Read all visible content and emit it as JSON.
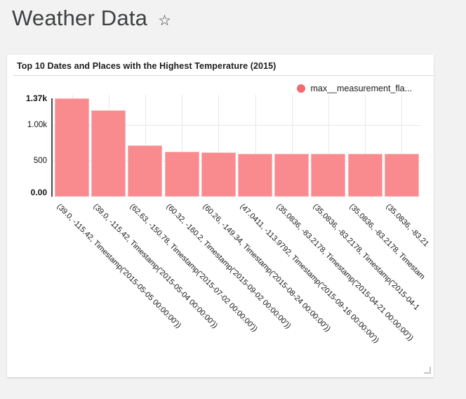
{
  "colors": {
    "background": "#f2f2f2",
    "card": "#ffffff",
    "bar_fill": "#f98a8d",
    "bar_border": "#fbb3b5",
    "legend_dot": "#f5696f",
    "axis_line": "#4a4a4a",
    "gridline": "#e8e8e8",
    "divider": "#dbdbdb",
    "header_text": "#3e4042",
    "title_text": "#1c1c1c"
  },
  "header": {
    "title": "Weather Data",
    "favorite_icon": "star-outline"
  },
  "card": {
    "title": "Top 10 Dates and Places with the Highest Temperature (2015)",
    "legend": {
      "label": "max__measurement_fla...",
      "marker": "circle",
      "position": "top-right"
    }
  },
  "chart_data": {
    "type": "bar",
    "title": "Top 10 Dates and Places with the Highest Temperature (2015)",
    "legend": [
      "max__measurement_fla..."
    ],
    "series_name": "max__measurement_fla...",
    "categories": [
      "(39.0, -115.42, Timestamp('2015-05-05 00:00:00'))",
      "(39.0, -115.42, Timestamp('2015-05-04 00:00:00'))",
      "(62.63, -150.78, Timestamp('2015-07-02 00:00:00'))",
      "(60.32, -160.2, Timestamp('2015-09-02 00:00:00'))",
      "(60.26, -149.34, Timestamp('2015-08-24 00:00:00'))",
      "(47.0411, -113.9792, Timestamp('2015-09-16 00:00:00'))",
      "(35.0836, -83.2178, Timestamp('2015-04-21 00:00:00'))",
      "(35.0836, -83.2178, Timestamp('2015-04-1",
      "(35.0836, -83.2178, Timestam",
      "(35.0836, -83.21"
    ],
    "values": [
      1370,
      1210,
      720,
      630,
      620,
      595,
      595,
      595,
      595,
      595
    ],
    "xlabel": "",
    "ylabel": "",
    "ylim": [
      0,
      1370
    ],
    "yticks": [
      {
        "label": "0.00",
        "value": 0,
        "bold": true,
        "grid": false
      },
      {
        "label": "500",
        "value": 500,
        "bold": false,
        "grid": true
      },
      {
        "label": "1.00k",
        "value": 1000,
        "bold": false,
        "grid": true
      },
      {
        "label": "1.37k",
        "value": 1370,
        "bold": true,
        "grid": false
      }
    ],
    "grid": true,
    "xtick_rotation": 45,
    "legend_position": "top-right"
  }
}
